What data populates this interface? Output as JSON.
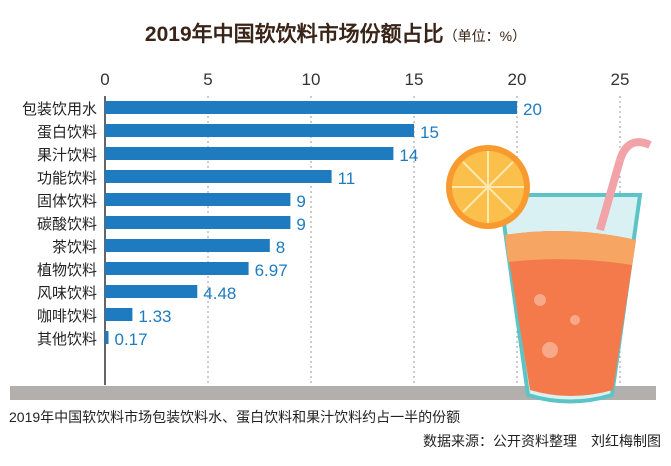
{
  "chart_data": {
    "type": "bar",
    "orientation": "horizontal",
    "title": "2019年中国软饮料市场份额占比",
    "unit_note": "（单位：%）",
    "categories": [
      "包装饮用水",
      "蛋白饮料",
      "果汁饮料",
      "功能饮料",
      "固体饮料",
      "碳酸饮料",
      "茶饮料",
      "植物饮料",
      "风味饮料",
      "咖啡饮料",
      "其他饮料"
    ],
    "values": [
      20,
      15,
      14,
      11,
      9,
      9,
      8,
      6.97,
      4.48,
      1.33,
      0.17
    ],
    "value_labels": [
      "20",
      "15",
      "14",
      "11",
      "9",
      "9",
      "8",
      "6.97",
      "4.48",
      "1.33",
      "0.17"
    ],
    "xlim": [
      0,
      25
    ],
    "xticks": [
      "0",
      "5",
      "10",
      "15",
      "20",
      "25"
    ],
    "grid": true,
    "bar_color": "#1f7bbf"
  },
  "caption": "2019年中国软饮料市场包装饮料水、蛋白饮料和果汁饮料约占一半的份额",
  "source": "数据来源：公开资料整理　刘红梅制图"
}
